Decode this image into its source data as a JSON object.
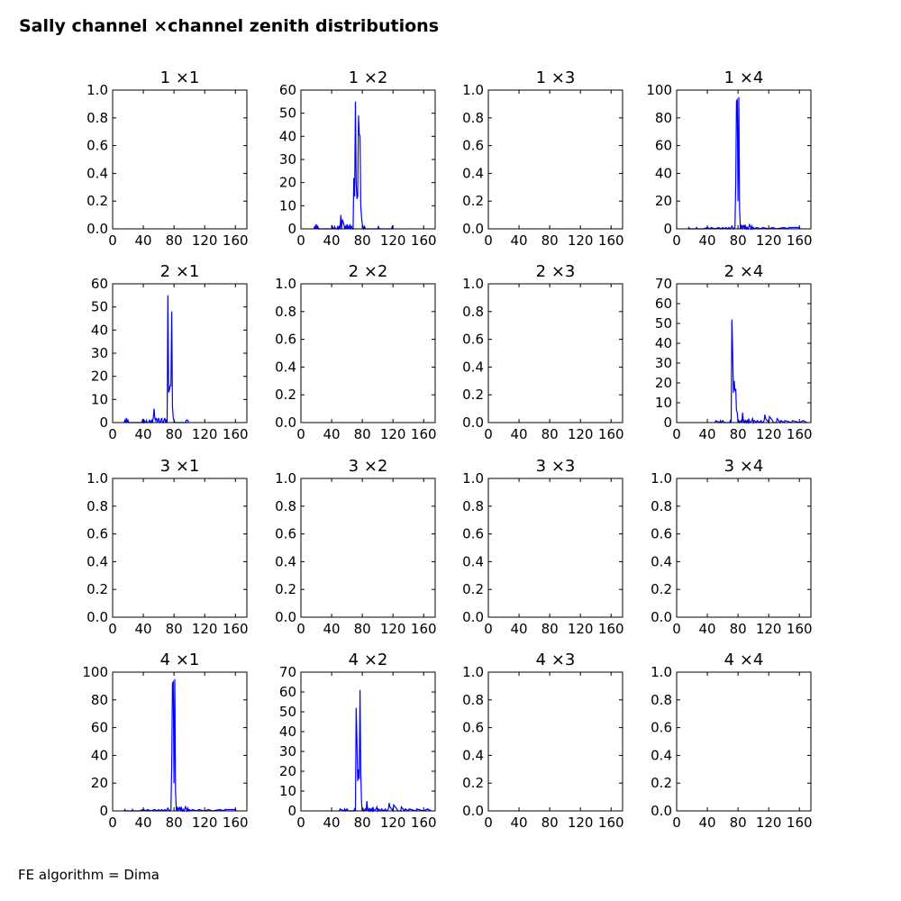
{
  "figure": {
    "title": "Sally channel ×channel zenith distributions",
    "footer": "FE algorithm = Dima",
    "line_color": "#0000ff"
  },
  "chart_data": [
    {
      "type": "line",
      "title": "1 ×1",
      "xlim": [
        0,
        175
      ],
      "xticks": [
        "0",
        "40",
        "80",
        "120",
        "160"
      ],
      "ylim": [
        0,
        1
      ],
      "yticks": [
        "0.0",
        "0.2",
        "0.4",
        "0.6",
        "0.8",
        "1.0"
      ],
      "series": []
    },
    {
      "type": "line",
      "title": "1 ×2",
      "xlim": [
        0,
        175
      ],
      "xticks": [
        "0",
        "40",
        "80",
        "120",
        "160"
      ],
      "ylim": [
        0,
        60
      ],
      "yticks": [
        "0",
        "10",
        "20",
        "30",
        "40",
        "50",
        "60"
      ],
      "series": [
        {
          "x": [
            17,
            18,
            19,
            20,
            21,
            22,
            23,
            24,
            40,
            41,
            42,
            43,
            44,
            45,
            46,
            47,
            48,
            49,
            50,
            51,
            52,
            53,
            54,
            55,
            56,
            57,
            58,
            59,
            60,
            61,
            62,
            63,
            64,
            65,
            66,
            67,
            68,
            69,
            70,
            71,
            72,
            73,
            74,
            75,
            76,
            77,
            78,
            79,
            80,
            81,
            82,
            83,
            84,
            85,
            86,
            87,
            100,
            101,
            102,
            103,
            118,
            119,
            120,
            121
          ],
          "y": [
            0,
            1,
            0,
            2,
            0,
            1,
            0,
            0,
            0,
            1,
            0,
            0,
            1,
            0,
            0,
            0,
            1,
            0,
            1,
            0,
            6,
            0,
            4,
            3,
            2,
            0,
            1,
            0,
            2,
            0,
            1,
            0,
            2,
            0,
            1,
            0,
            0,
            22,
            14,
            55,
            20,
            13,
            14,
            49,
            41,
            40,
            10,
            5,
            2,
            1,
            0,
            1,
            0,
            0,
            0,
            0,
            0,
            1,
            0,
            0,
            0,
            1,
            0,
            0
          ]
        }
      ]
    },
    {
      "type": "line",
      "title": "1 ×3",
      "xlim": [
        0,
        175
      ],
      "xticks": [
        "0",
        "40",
        "80",
        "120",
        "160"
      ],
      "ylim": [
        0,
        1
      ],
      "yticks": [
        "0.0",
        "0.2",
        "0.4",
        "0.6",
        "0.8",
        "1.0"
      ],
      "series": []
    },
    {
      "type": "line",
      "title": "1 ×4",
      "xlim": [
        0,
        175
      ],
      "xticks": [
        "0",
        "40",
        "80",
        "120",
        "160"
      ],
      "ylim": [
        0,
        100
      ],
      "yticks": [
        "0",
        "20",
        "40",
        "60",
        "80",
        "100"
      ],
      "series": [
        {
          "x": [
            15,
            16,
            17,
            18,
            25,
            26,
            27,
            30,
            35,
            40,
            44,
            45,
            50,
            55,
            58,
            60,
            62,
            64,
            66,
            68,
            70,
            72,
            74,
            76,
            77,
            78,
            79,
            80,
            81,
            82,
            83,
            84,
            85,
            86,
            87,
            88,
            89,
            90,
            91,
            92,
            93,
            95,
            97,
            98,
            99,
            100,
            102,
            104,
            110,
            112,
            120,
            125,
            130,
            140,
            145,
            146,
            148,
            155,
            160,
            161
          ],
          "y": [
            0,
            1,
            0,
            0,
            0,
            1,
            0,
            0,
            0,
            1,
            0,
            1,
            0,
            1,
            0,
            1,
            0,
            1,
            0,
            1,
            0,
            2,
            0,
            1,
            33,
            92,
            93,
            20,
            95,
            15,
            0,
            3,
            0,
            2,
            1,
            3,
            0,
            2,
            0,
            1,
            0,
            3,
            0,
            2,
            0,
            1,
            0,
            1,
            0,
            1,
            0,
            1,
            0,
            1,
            0,
            1,
            1,
            1,
            1,
            0
          ]
        }
      ]
    },
    {
      "type": "line",
      "title": "2 ×1",
      "xlim": [
        0,
        175
      ],
      "xticks": [
        "0",
        "40",
        "80",
        "120",
        "160"
      ],
      "ylim": [
        0,
        60
      ],
      "yticks": [
        "0",
        "10",
        "20",
        "30",
        "40",
        "50",
        "60"
      ],
      "series": [
        {
          "x": [
            15,
            16,
            17,
            18,
            19,
            20,
            21,
            38,
            39,
            40,
            41,
            42,
            43,
            44,
            45,
            46,
            47,
            48,
            50,
            51,
            52,
            53,
            54,
            55,
            56,
            57,
            58,
            59,
            60,
            61,
            62,
            63,
            64,
            65,
            66,
            67,
            68,
            69,
            70,
            71,
            72,
            73,
            74,
            75,
            76,
            77,
            78,
            79,
            80,
            81,
            82,
            83,
            84,
            85,
            86,
            95,
            96,
            97,
            98,
            99,
            100
          ],
          "y": [
            0,
            1,
            0,
            2,
            0,
            1,
            0,
            0,
            1,
            0,
            1,
            0,
            0,
            1,
            0,
            0,
            0,
            1,
            0,
            1,
            0,
            2,
            6,
            2,
            1,
            2,
            0,
            1,
            2,
            0,
            0,
            1,
            2,
            0,
            0,
            1,
            2,
            0,
            1,
            0,
            55,
            13,
            14,
            16,
            16,
            48,
            7,
            2,
            1,
            0,
            0,
            0,
            0,
            0,
            0,
            0,
            1,
            1,
            1,
            0,
            0
          ]
        }
      ]
    },
    {
      "type": "line",
      "title": "2 ×2",
      "xlim": [
        0,
        175
      ],
      "xticks": [
        "0",
        "40",
        "80",
        "120",
        "160"
      ],
      "ylim": [
        0,
        1
      ],
      "yticks": [
        "0.0",
        "0.2",
        "0.4",
        "0.6",
        "0.8",
        "1.0"
      ],
      "series": []
    },
    {
      "type": "line",
      "title": "2 ×3",
      "xlim": [
        0,
        175
      ],
      "xticks": [
        "0",
        "40",
        "80",
        "120",
        "160"
      ],
      "ylim": [
        0,
        1
      ],
      "yticks": [
        "0.0",
        "0.2",
        "0.4",
        "0.6",
        "0.8",
        "1.0"
      ],
      "series": []
    },
    {
      "type": "line",
      "title": "2 ×4",
      "xlim": [
        0,
        175
      ],
      "xticks": [
        "0",
        "40",
        "80",
        "120",
        "160"
      ],
      "ylim": [
        0,
        70
      ],
      "yticks": [
        "0",
        "10",
        "20",
        "30",
        "40",
        "50",
        "60",
        "70"
      ],
      "series": [
        {
          "x": [
            50,
            51,
            56,
            57,
            58,
            60,
            62,
            69,
            70,
            71,
            72,
            73,
            74,
            75,
            76,
            77,
            78,
            79,
            80,
            81,
            82,
            84,
            85,
            86,
            87,
            88,
            89,
            90,
            91,
            92,
            93,
            94,
            95,
            98,
            99,
            100,
            101,
            104,
            105,
            108,
            110,
            111,
            112,
            114,
            115,
            116,
            120,
            121,
            125,
            126,
            130,
            131,
            135,
            136,
            140,
            141,
            150,
            151,
            160,
            165,
            170
          ],
          "y": [
            0,
            1,
            0,
            1,
            0,
            1,
            0,
            0,
            1,
            0,
            52,
            35,
            15,
            21,
            16,
            17,
            6,
            5,
            0,
            1,
            0,
            1,
            0,
            5,
            0,
            1,
            0,
            1,
            0,
            1,
            0,
            2,
            0,
            1,
            2,
            0,
            1,
            0,
            1,
            0,
            1,
            0,
            0,
            1,
            4,
            2,
            0,
            3,
            1,
            0,
            0,
            2,
            0,
            1,
            0,
            1,
            0,
            1,
            0,
            1,
            0
          ]
        }
      ]
    },
    {
      "type": "line",
      "title": "3 ×1",
      "xlim": [
        0,
        175
      ],
      "xticks": [
        "0",
        "40",
        "80",
        "120",
        "160"
      ],
      "ylim": [
        0,
        1
      ],
      "yticks": [
        "0.0",
        "0.2",
        "0.4",
        "0.6",
        "0.8",
        "1.0"
      ],
      "series": []
    },
    {
      "type": "line",
      "title": "3 ×2",
      "xlim": [
        0,
        175
      ],
      "xticks": [
        "0",
        "40",
        "80",
        "120",
        "160"
      ],
      "ylim": [
        0,
        1
      ],
      "yticks": [
        "0.0",
        "0.2",
        "0.4",
        "0.6",
        "0.8",
        "1.0"
      ],
      "series": []
    },
    {
      "type": "line",
      "title": "3 ×3",
      "xlim": [
        0,
        175
      ],
      "xticks": [
        "0",
        "40",
        "80",
        "120",
        "160"
      ],
      "ylim": [
        0,
        1
      ],
      "yticks": [
        "0.0",
        "0.2",
        "0.4",
        "0.6",
        "0.8",
        "1.0"
      ],
      "series": []
    },
    {
      "type": "line",
      "title": "3 ×4",
      "xlim": [
        0,
        175
      ],
      "xticks": [
        "0",
        "40",
        "80",
        "120",
        "160"
      ],
      "ylim": [
        0,
        1
      ],
      "yticks": [
        "0.0",
        "0.2",
        "0.4",
        "0.6",
        "0.8",
        "1.0"
      ],
      "series": []
    },
    {
      "type": "line",
      "title": "4 ×1",
      "xlim": [
        0,
        175
      ],
      "xticks": [
        "0",
        "40",
        "80",
        "120",
        "160"
      ],
      "ylim": [
        0,
        100
      ],
      "yticks": [
        "0",
        "20",
        "40",
        "60",
        "80",
        "100"
      ],
      "series": [
        {
          "x": [
            15,
            16,
            17,
            18,
            25,
            26,
            27,
            30,
            35,
            40,
            44,
            45,
            50,
            55,
            58,
            60,
            62,
            64,
            66,
            68,
            70,
            72,
            74,
            76,
            77,
            78,
            79,
            80,
            81,
            82,
            83,
            84,
            85,
            86,
            87,
            88,
            89,
            90,
            91,
            92,
            93,
            95,
            97,
            98,
            99,
            100,
            102,
            104,
            110,
            112,
            120,
            125,
            130,
            140,
            145,
            146,
            148,
            155,
            160,
            161
          ],
          "y": [
            0,
            1,
            0,
            0,
            0,
            1,
            0,
            0,
            0,
            1,
            0,
            1,
            0,
            1,
            0,
            1,
            0,
            1,
            0,
            1,
            0,
            2,
            0,
            1,
            33,
            92,
            93,
            20,
            95,
            15,
            0,
            3,
            0,
            2,
            1,
            3,
            0,
            2,
            0,
            1,
            0,
            3,
            0,
            2,
            0,
            1,
            0,
            1,
            0,
            1,
            0,
            1,
            0,
            1,
            0,
            1,
            1,
            1,
            1,
            0
          ]
        }
      ]
    },
    {
      "type": "line",
      "title": "4 ×2",
      "xlim": [
        0,
        175
      ],
      "xticks": [
        "0",
        "40",
        "80",
        "120",
        "160"
      ],
      "ylim": [
        0,
        70
      ],
      "yticks": [
        "0",
        "10",
        "20",
        "30",
        "40",
        "50",
        "60",
        "70"
      ],
      "series": [
        {
          "x": [
            50,
            51,
            56,
            57,
            58,
            60,
            62,
            69,
            70,
            71,
            72,
            73,
            74,
            75,
            76,
            77,
            78,
            79,
            80,
            81,
            82,
            84,
            85,
            86,
            87,
            88,
            89,
            90,
            91,
            92,
            93,
            94,
            95,
            98,
            99,
            100,
            101,
            104,
            105,
            108,
            110,
            111,
            112,
            114,
            115,
            116,
            120,
            121,
            125,
            126,
            130,
            131,
            135,
            136,
            140,
            141,
            150,
            151,
            160,
            165,
            170
          ],
          "y": [
            0,
            1,
            0,
            1,
            0,
            1,
            0,
            0,
            1,
            0,
            52,
            35,
            15,
            21,
            16,
            61,
            20,
            4,
            0,
            1,
            0,
            1,
            0,
            5,
            0,
            1,
            0,
            1,
            0,
            1,
            0,
            2,
            0,
            1,
            2,
            0,
            1,
            0,
            1,
            0,
            1,
            0,
            0,
            1,
            4,
            2,
            0,
            3,
            1,
            0,
            0,
            2,
            0,
            1,
            0,
            1,
            0,
            1,
            0,
            1,
            0
          ]
        }
      ]
    },
    {
      "type": "line",
      "title": "4 ×3",
      "xlim": [
        0,
        175
      ],
      "xticks": [
        "0",
        "40",
        "80",
        "120",
        "160"
      ],
      "ylim": [
        0,
        1
      ],
      "yticks": [
        "0.0",
        "0.2",
        "0.4",
        "0.6",
        "0.8",
        "1.0"
      ],
      "series": []
    },
    {
      "type": "line",
      "title": "4 ×4",
      "xlim": [
        0,
        175
      ],
      "xticks": [
        "0",
        "40",
        "80",
        "120",
        "160"
      ],
      "ylim": [
        0,
        1
      ],
      "yticks": [
        "0.0",
        "0.2",
        "0.4",
        "0.6",
        "0.8",
        "1.0"
      ],
      "series": []
    }
  ]
}
